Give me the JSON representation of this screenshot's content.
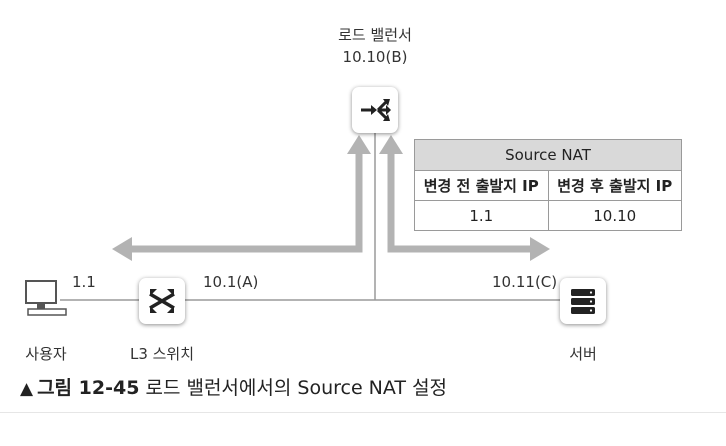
{
  "load_balancer": {
    "name": "로드 밸런서",
    "ip": "10.10(B)"
  },
  "l3_switch": {
    "name": "L3 스위치",
    "ip": "10.1(A)"
  },
  "user": {
    "name": "사용자",
    "ip": "1.1"
  },
  "server": {
    "name": "서버",
    "ip": "10.11(C)"
  },
  "nat_table": {
    "title": "Source NAT",
    "headers": [
      "변경 전 출발지 IP",
      "변경 후 출발지 IP"
    ],
    "rows": [
      [
        "1.1",
        "10.10"
      ]
    ]
  },
  "caption": {
    "symbol": "▲",
    "prefix": "그림 12-45",
    "text": "로드 밸런서에서의 Source NAT 설정"
  },
  "colors": {
    "arrow": "#b3b3b3",
    "line": "#9a9a9a",
    "table_title_bg": "#d9d9d9"
  }
}
